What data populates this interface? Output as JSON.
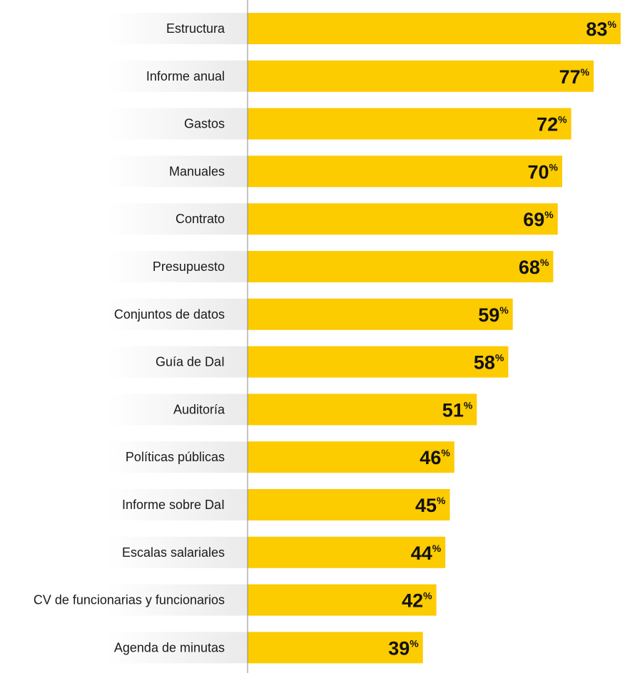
{
  "chart_data": {
    "type": "bar",
    "orientation": "horizontal",
    "categories": [
      "Estructura",
      "Informe anual",
      "Gastos",
      "Manuales",
      "Contrato",
      "Presupuesto",
      "Conjuntos de datos",
      "Guía de DaI",
      "Auditoría",
      "Políticas públicas",
      "Informe sobre DaI",
      "Escalas salariales",
      "CV de funcionarias y funcionarios",
      "Agenda de minutas"
    ],
    "values": [
      83,
      77,
      72,
      70,
      69,
      68,
      59,
      58,
      51,
      46,
      45,
      44,
      42,
      39
    ],
    "value_suffix": "%",
    "xlim": [
      0,
      100
    ],
    "title": "",
    "xlabel": "",
    "ylabel": "",
    "grid": false,
    "legend": "none",
    "colors": {
      "bar": "#FCCB00",
      "label_band_light": "#ffffff",
      "label_band_shade": "#eaeaea",
      "axis": "#8a8a8a",
      "text": "#1a1a1a"
    }
  }
}
